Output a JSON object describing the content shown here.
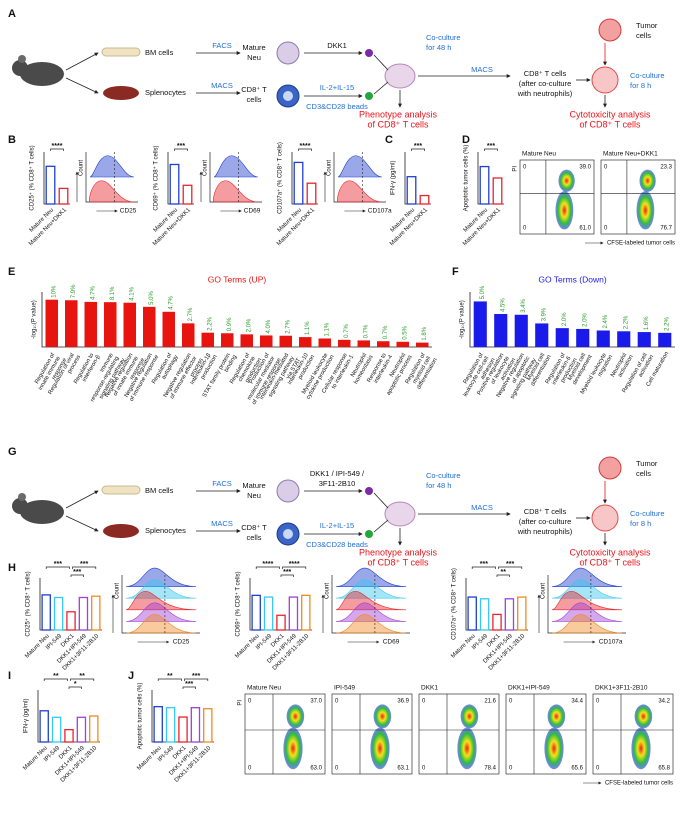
{
  "panels": [
    "A",
    "B",
    "C",
    "D",
    "E",
    "F",
    "G",
    "H",
    "I",
    "J"
  ],
  "schematic_a": {
    "labels": [
      "BM cells",
      "Splenocytes",
      "FACS",
      "MACS",
      "Mature",
      "Neu",
      "CD8⁺ T",
      "cells",
      "DKK1",
      "IL-2+IL-15",
      "CD3&CD28 beads",
      "Co-culture",
      "for 48 h",
      "MACS",
      "CD8⁺ T cells",
      "(after co-culture",
      "with neutrophils)",
      "Phenotype analysis",
      "of CD8⁺ T cells",
      "Tumor",
      "cells",
      "Co-culture",
      "for 8 h",
      "Cytotoxicity analysis",
      "of CD8⁺ T cells"
    ]
  },
  "schematic_g": {
    "labels": [
      "BM cells",
      "Splenocytes",
      "FACS",
      "MACS",
      "Mature",
      "Neu",
      "CD8⁺ T",
      "cells",
      "DKK1 / IPI-549 /",
      "IL-2+IL-15",
      "CD3&CD28 beads",
      "Co-culture",
      "for 48 h",
      "MACS",
      "CD8⁺ T cells",
      "(after co-culture",
      "with neutrophils)",
      "Phenotype analysis",
      "of CD8⁺ T cells",
      "Tumor",
      "cells",
      "Co-culture",
      "for 8 h",
      "Cytotoxicity analysis",
      "of CD8⁺ T cells",
      "3F11-2B10"
    ]
  },
  "b": [
    {
      "y_label": "CD25⁺ (% CD8⁺ T cells)",
      "categories": [
        "Mature Neu",
        "Mature Neu+DKK1"
      ],
      "values": [
        29,
        12
      ],
      "colors": [
        "#1f3fd1",
        "#e8242c"
      ],
      "ylim": [
        0,
        40
      ],
      "significance": [
        "****"
      ],
      "histogram": {
        "x_label": "CD25",
        "y_label": "Count"
      }
    },
    {
      "y_label": "CD69⁺ (% CD8⁺ T cells)",
      "categories": [
        "Mature Neu",
        "Mature Neu+DKK1"
      ],
      "values": [
        38,
        18
      ],
      "colors": [
        "#1f3fd1",
        "#e8242c"
      ],
      "ylim": [
        0,
        50
      ],
      "significance": [
        "***"
      ],
      "histogram": {
        "x_label": "CD69",
        "y_label": "Count"
      }
    },
    {
      "y_label": "CD107a⁺ (% CD8⁺ T cells)",
      "categories": [
        "Mature Neu",
        "Mature Neu+DKK1"
      ],
      "values": [
        40,
        20
      ],
      "colors": [
        "#1f3fd1",
        "#e8242c"
      ],
      "ylim": [
        0,
        50
      ],
      "significance": [
        "****"
      ],
      "histogram": {
        "x_label": "CD107a",
        "y_label": "Count"
      }
    }
  ],
  "c": {
    "y_label": "IFN-γ (pg/ml)",
    "categories": [
      "Mature Neu",
      "Mature Neu+DKK1"
    ],
    "values": [
      420,
      130
    ],
    "colors": [
      "#1f3fd1",
      "#e8242c"
    ],
    "ylim": [
      0,
      800
    ],
    "significance": [
      "***"
    ]
  },
  "d": {
    "y_label": "Apoptotic tumor cells (%)",
    "categories": [
      "Mature Neu",
      "Mature Neu+DKK1"
    ],
    "values": [
      36,
      25
    ],
    "colors": [
      "#1f3fd1",
      "#e8242c"
    ],
    "ylim": [
      0,
      50
    ],
    "significance": [
      "***"
    ],
    "flow": {
      "x_label": "CFSE-labeled tumor cells",
      "y_label": "PI",
      "plots": [
        {
          "title": "Mature Neu",
          "quadrants": [
            "0",
            "39.0",
            "0",
            "61.0"
          ]
        },
        {
          "title": "Mature Neu+DKK1",
          "quadrants": [
            "0",
            "23.3",
            "0",
            "76.7"
          ]
        }
      ]
    }
  },
  "e": {
    "title": "GO Terms (UP)",
    "y_label": "-log₁₀(P value)",
    "color": "#e8140f",
    "label_color": "#2a9d2a",
    "ylim": [
      0,
      20
    ],
    "categories": [
      "Regulation of innate immune response",
      "Regulation of viral process",
      "Regulation to interferon-β",
      "Immune response-regulating signaling pathway",
      "Negative regulation of innate immune response",
      "Negative regulation of immune response",
      "Regulation of autophagy",
      "Negative regulation of immune effector process",
      "Interleukin-1β production",
      "STAT family protein binding",
      "Regulation of chemokine production",
      "Production of molecular mediator of immune response",
      "Interleukin-mediated signaling pathway via STAT",
      "Interleukin-10 production",
      "Myeloid leukocyte cytokine production",
      "Cellular response to interleukin-1",
      "Neutrophil homeostasis",
      "Response to interleukin-4",
      "Neutrophil apoptotic process",
      "Regulation of myeloid cell differentiation"
    ],
    "values": [
      17.2,
      17,
      16.4,
      16.3,
      16.1,
      14.6,
      12.8,
      8.6,
      5.2,
      5,
      4.6,
      4.2,
      4.1,
      3.6,
      3.1,
      2.6,
      2.4,
      2.1,
      1.9,
      1.6
    ],
    "value_labels": [
      "10%",
      "7.9%",
      "4.7%",
      "8.1%",
      "4.1%",
      "5.0%",
      "4.7%",
      "2.7%",
      "2.2%",
      "0.9%",
      "2.0%",
      "4.0%",
      "2.7%",
      "1.1%",
      "1.1%",
      "0.7%",
      "0.7%",
      "0.7%",
      "0.5%",
      "1.8%"
    ]
  },
  "f": {
    "title": "GO Terms (Down)",
    "y_label": "-log₁₀(P value)",
    "color": "#1a1aeb",
    "label_color": "#2a9d2a",
    "ylim": [
      0,
      7
    ],
    "categories": [
      "Regulation of leukocyte cell-cell adhesion",
      "Positive regulation of leukocyte activation",
      "Negative regulation of apoptotic signaling pathway",
      "Myeloid cell differentiation",
      "Regulation of interleukin-6 production",
      "Myeloid cell development",
      "Myeloid leukocyte migration",
      "Neutrophil activation",
      "Regulation of cell activation",
      "Cell maturation"
    ],
    "values": [
      5.8,
      4.2,
      4.1,
      3.0,
      2.4,
      2.3,
      2.1,
      2.0,
      1.9,
      1.8
    ],
    "value_labels": [
      "5.0%",
      "4.5%",
      "3.4%",
      "3.9%",
      "2.0%",
      "2.0%",
      "2.4%",
      "2.2%",
      "1.6%",
      "2.2%"
    ]
  },
  "h": [
    {
      "y_label": "CD25⁺ (% CD8⁺ T cells)",
      "categories": [
        "Mature Neu",
        "IPI-549",
        "DKK1",
        "DKK1+IPI-549",
        "DKK1+3F11-2B10"
      ],
      "values": [
        27,
        25,
        14,
        25,
        26
      ],
      "colors": [
        "#1f3fd1",
        "#35c8f0",
        "#e8242c",
        "#a23fd6",
        "#f08a24"
      ],
      "ylim": [
        0,
        40
      ],
      "significance": [
        "***",
        "***",
        "***"
      ],
      "histogram": {
        "x_label": "CD25",
        "y_label": "Count"
      }
    },
    {
      "y_label": "CD69⁺ (% CD8⁺ T cells)",
      "categories": [
        "Mature Neu",
        "IPI-549",
        "DKK1",
        "DKK1+IPI-549",
        "DKK1+3F11-2B10"
      ],
      "values": [
        40,
        38,
        17,
        38,
        40
      ],
      "colors": [
        "#1f3fd1",
        "#35c8f0",
        "#e8242c",
        "#a23fd6",
        "#f08a24"
      ],
      "ylim": [
        0,
        60
      ],
      "significance": [
        "****",
        "****",
        "***"
      ],
      "histogram": {
        "x_label": "CD69",
        "y_label": "Count"
      }
    },
    {
      "y_label": "CD107a⁺ (% CD8⁺ T cells)",
      "categories": [
        "Mature Neu",
        "IPI-549",
        "DKK1",
        "DKK1+IPI-549",
        "DKK1+3F11-2B10"
      ],
      "values": [
        38,
        36,
        18,
        36,
        38
      ],
      "colors": [
        "#1f3fd1",
        "#35c8f0",
        "#e8242c",
        "#a23fd6",
        "#f08a24"
      ],
      "ylim": [
        0,
        60
      ],
      "significance": [
        "***",
        "***",
        "**"
      ],
      "histogram": {
        "x_label": "CD107a",
        "y_label": "Count"
      }
    }
  ],
  "i": {
    "y_label": "IFN-γ (pg/ml)",
    "categories": [
      "Mature Neu",
      "IPI-549",
      "DKK1",
      "DKK1+IPI-549",
      "DKK1+3F11-2B10"
    ],
    "values": [
      480,
      380,
      190,
      380,
      400
    ],
    "colors": [
      "#1f3fd1",
      "#35c8f0",
      "#e8242c",
      "#a23fd6",
      "#f08a24"
    ],
    "ylim": [
      0,
      800
    ],
    "significance": [
      "**",
      "**",
      "*"
    ]
  },
  "j": {
    "y_label": "Apoptotic tumor cells (%)",
    "categories": [
      "Mature Neu",
      "IPI-549",
      "DKK1",
      "DKK1+IPI-549",
      "DKK1+3F11-2B10"
    ],
    "values": [
      34,
      33,
      24,
      33,
      32
    ],
    "colors": [
      "#1f3fd1",
      "#35c8f0",
      "#e8242c",
      "#a23fd6",
      "#f08a24"
    ],
    "ylim": [
      0,
      50
    ],
    "significance": [
      "**",
      "***",
      "***"
    ],
    "flow": {
      "x_label": "CFSE-labeled tumor cells",
      "y_label": "PI",
      "plots": [
        {
          "title": "Mature Neu",
          "quadrants": [
            "0",
            "37.0",
            "0",
            "63.0"
          ]
        },
        {
          "title": "IPI-549",
          "quadrants": [
            "0",
            "36.9",
            "0",
            "63.1"
          ]
        },
        {
          "title": "DKK1",
          "quadrants": [
            "0",
            "21.6",
            "0",
            "78.4"
          ]
        },
        {
          "title": "DKK1+IPI-549",
          "quadrants": [
            "0",
            "34.4",
            "0",
            "65.6"
          ]
        },
        {
          "title": "DKK1+3F11-2B10",
          "quadrants": [
            "0",
            "34.2",
            "0",
            "65.8"
          ]
        }
      ]
    }
  }
}
